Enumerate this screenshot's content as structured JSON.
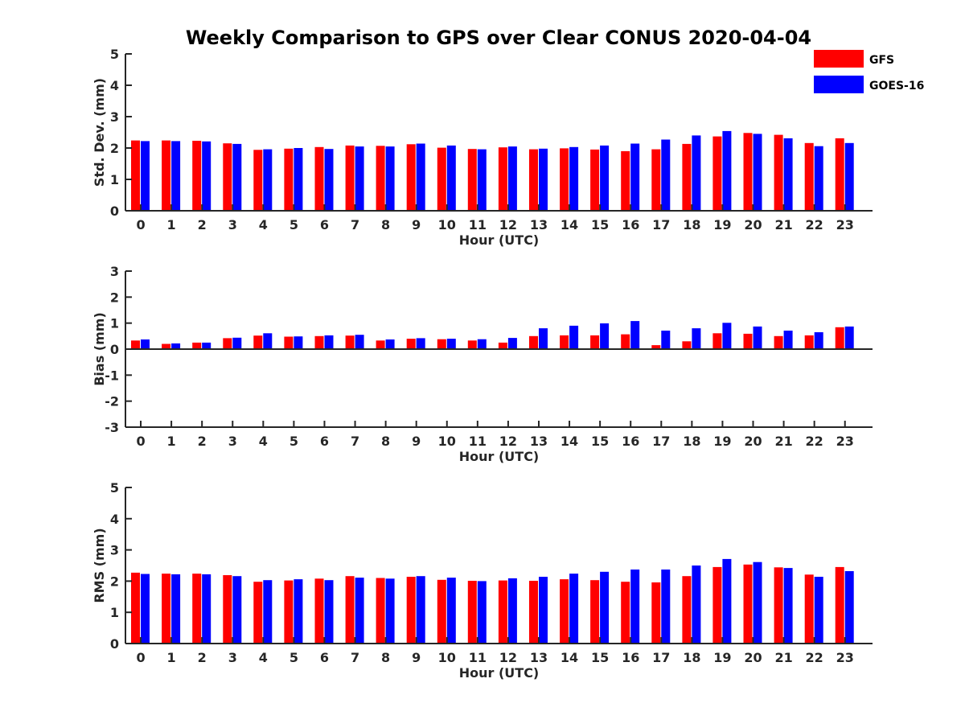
{
  "title": "Weekly Comparison to GPS over Clear CONUS 2020-04-04",
  "colors": {
    "GFS": "#ff0000",
    "GOES-16": "#0000ff",
    "axis": "#262626"
  },
  "legend": [
    {
      "name": "GFS",
      "color": "#ff0000"
    },
    {
      "name": "GOES-16",
      "color": "#0000ff"
    }
  ],
  "chart_data": [
    {
      "type": "bar",
      "title": "Weekly Comparison to GPS over Clear CONUS 2020-04-04",
      "xlabel": "Hour (UTC)",
      "ylabel": "Std. Dev. (mm)",
      "ylim": [
        0,
        5
      ],
      "yticks": [
        "0",
        "1",
        "2",
        "3",
        "4",
        "5"
      ],
      "categories": [
        "0",
        "1",
        "2",
        "3",
        "4",
        "5",
        "6",
        "7",
        "8",
        "9",
        "10",
        "11",
        "12",
        "13",
        "14",
        "15",
        "16",
        "17",
        "18",
        "19",
        "20",
        "21",
        "22",
        "23"
      ],
      "legend_position": "top-right",
      "grid": false,
      "series": [
        {
          "name": "GFS",
          "color": "#ff0000",
          "values": [
            2.24,
            2.24,
            2.23,
            2.15,
            1.94,
            1.98,
            2.03,
            2.08,
            2.07,
            2.12,
            2.01,
            1.97,
            2.02,
            1.96,
            1.99,
            1.95,
            1.9,
            1.96,
            2.13,
            2.37,
            2.48,
            2.42,
            2.16,
            2.31
          ]
        },
        {
          "name": "GOES-16",
          "color": "#0000ff",
          "values": [
            2.22,
            2.22,
            2.21,
            2.13,
            1.96,
            2.0,
            1.97,
            2.05,
            2.05,
            2.14,
            2.08,
            1.96,
            2.05,
            1.98,
            2.03,
            2.08,
            2.14,
            2.27,
            2.4,
            2.54,
            2.45,
            2.31,
            2.06,
            2.16
          ]
        }
      ]
    },
    {
      "type": "bar",
      "xlabel": "Hour (UTC)",
      "ylabel": "Bias (mm)",
      "ylim": [
        -3,
        3
      ],
      "yticks": [
        "-3",
        "-2",
        "-1",
        "0",
        "1",
        "2",
        "3"
      ],
      "categories": [
        "0",
        "1",
        "2",
        "3",
        "4",
        "5",
        "6",
        "7",
        "8",
        "9",
        "10",
        "11",
        "12",
        "13",
        "14",
        "15",
        "16",
        "17",
        "18",
        "19",
        "20",
        "21",
        "22",
        "23"
      ],
      "grid": false,
      "series": [
        {
          "name": "GFS",
          "color": "#ff0000",
          "values": [
            0.33,
            0.2,
            0.25,
            0.42,
            0.52,
            0.48,
            0.5,
            0.52,
            0.33,
            0.4,
            0.38,
            0.33,
            0.25,
            0.5,
            0.53,
            0.53,
            0.57,
            0.15,
            0.3,
            0.61,
            0.59,
            0.5,
            0.53,
            0.84
          ]
        },
        {
          "name": "GOES-16",
          "color": "#0000ff",
          "values": [
            0.37,
            0.22,
            0.25,
            0.44,
            0.61,
            0.49,
            0.53,
            0.55,
            0.37,
            0.42,
            0.4,
            0.38,
            0.43,
            0.8,
            0.9,
            0.99,
            1.08,
            0.71,
            0.8,
            1.01,
            0.87,
            0.71,
            0.65,
            0.87
          ]
        }
      ]
    },
    {
      "type": "bar",
      "xlabel": "Hour (UTC)",
      "ylabel": "RMS (mm)",
      "ylim": [
        0,
        5
      ],
      "yticks": [
        "0",
        "1",
        "2",
        "3",
        "4",
        "5"
      ],
      "categories": [
        "0",
        "1",
        "2",
        "3",
        "4",
        "5",
        "6",
        "7",
        "8",
        "9",
        "10",
        "11",
        "12",
        "13",
        "14",
        "15",
        "16",
        "17",
        "18",
        "19",
        "20",
        "21",
        "22",
        "23"
      ],
      "grid": false,
      "series": [
        {
          "name": "GFS",
          "color": "#ff0000",
          "values": [
            2.27,
            2.24,
            2.24,
            2.19,
            1.98,
            2.02,
            2.08,
            2.16,
            2.1,
            2.14,
            2.04,
            2.01,
            2.02,
            2.01,
            2.06,
            2.03,
            1.98,
            1.96,
            2.16,
            2.45,
            2.53,
            2.44,
            2.21,
            2.45
          ]
        },
        {
          "name": "GOES-16",
          "color": "#0000ff",
          "values": [
            2.23,
            2.22,
            2.22,
            2.16,
            2.03,
            2.06,
            2.03,
            2.11,
            2.08,
            2.16,
            2.11,
            2.0,
            2.09,
            2.14,
            2.24,
            2.3,
            2.37,
            2.37,
            2.5,
            2.71,
            2.61,
            2.42,
            2.14,
            2.32
          ]
        }
      ]
    }
  ]
}
